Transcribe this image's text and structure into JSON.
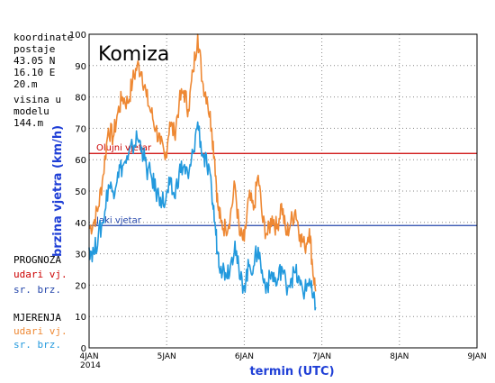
{
  "side_info": {
    "lines": [
      "koordinate",
      "postaje",
      "43.05 N",
      "16.10 E",
      "20.m",
      "visina u",
      "modelu",
      "144.m"
    ]
  },
  "legend": {
    "prognoza_title": "PROGNOZA",
    "prognoza_gust": "udari vj.",
    "prognoza_mean": "sr. brz.",
    "mjerenja_title": "MJERENJA",
    "mjerenja_gust": "udari vj.",
    "mjerenja_mean": "sr. brz.",
    "colors": {
      "prognoza_gust": "#cc0000",
      "prognoza_mean": "#2244aa",
      "mjerenja_gust": "#ee8833",
      "mjerenja_mean": "#2299dd",
      "threshold_strong": "#cc0000",
      "threshold_weak": "#2244aa",
      "axis_label": "#1f3fd6"
    }
  },
  "chart_data": {
    "type": "line",
    "title": "Komiza",
    "xlabel": "termin (UTC)",
    "ylabel": "brzina vjetra (km/h)",
    "ylim": [
      0,
      100
    ],
    "xlim_days": [
      4,
      9
    ],
    "x_tick_labels": [
      "4JAN",
      "5JAN",
      "6JAN",
      "7JAN",
      "8JAN",
      "9JAN"
    ],
    "x_year_label": "2014",
    "y_ticks": [
      0,
      10,
      20,
      30,
      40,
      50,
      60,
      70,
      80,
      90,
      100
    ],
    "grid": true,
    "thresholds": [
      {
        "label": "Olujni vjetar",
        "value": 62
      },
      {
        "label": "Jaki vjetar",
        "value": 39
      }
    ],
    "series": [
      {
        "name": "udari vj.",
        "color": "#ee8833",
        "x": [
          4.0,
          4.06,
          4.12,
          4.18,
          4.25,
          4.31,
          4.37,
          4.43,
          4.5,
          4.56,
          4.62,
          4.68,
          4.74,
          4.8,
          4.86,
          4.92,
          4.98,
          5.04,
          5.1,
          5.16,
          5.22,
          5.28,
          5.34,
          5.4,
          5.46,
          5.52,
          5.58,
          5.62,
          5.66,
          5.7,
          5.76,
          5.82,
          5.88,
          5.94,
          6.0,
          6.06,
          6.12,
          6.18,
          6.24,
          6.3,
          6.36,
          6.42,
          6.48,
          6.54,
          6.6,
          6.66,
          6.72,
          6.78,
          6.84,
          6.88,
          6.92
        ],
        "y": [
          38,
          40,
          45,
          55,
          70,
          67,
          75,
          80,
          78,
          85,
          90,
          88,
          80,
          75,
          70,
          65,
          60,
          72,
          68,
          78,
          82,
          76,
          88,
          100,
          85,
          80,
          70,
          60,
          45,
          40,
          38,
          42,
          52,
          36,
          34,
          48,
          44,
          55,
          40,
          36,
          42,
          38,
          46,
          36,
          40,
          44,
          36,
          32,
          38,
          26,
          18
        ]
      },
      {
        "name": "sr. brz.",
        "color": "#2299dd",
        "x": [
          4.0,
          4.06,
          4.12,
          4.18,
          4.25,
          4.31,
          4.37,
          4.43,
          4.5,
          4.56,
          4.62,
          4.68,
          4.74,
          4.8,
          4.86,
          4.92,
          4.98,
          5.04,
          5.1,
          5.16,
          5.22,
          5.28,
          5.34,
          5.4,
          5.46,
          5.52,
          5.58,
          5.62,
          5.66,
          5.7,
          5.76,
          5.82,
          5.88,
          5.94,
          6.0,
          6.06,
          6.12,
          6.18,
          6.24,
          6.3,
          6.36,
          6.42,
          6.48,
          6.54,
          6.6,
          6.66,
          6.72,
          6.78,
          6.84,
          6.88,
          6.92
        ],
        "y": [
          32,
          30,
          36,
          40,
          52,
          50,
          56,
          58,
          60,
          64,
          67,
          64,
          57,
          55,
          50,
          48,
          46,
          52,
          48,
          56,
          58,
          54,
          62,
          72,
          62,
          58,
          50,
          40,
          30,
          26,
          24,
          26,
          34,
          22,
          20,
          26,
          26,
          32,
          22,
          20,
          24,
          20,
          26,
          20,
          22,
          24,
          20,
          18,
          22,
          16,
          13
        ]
      }
    ]
  }
}
